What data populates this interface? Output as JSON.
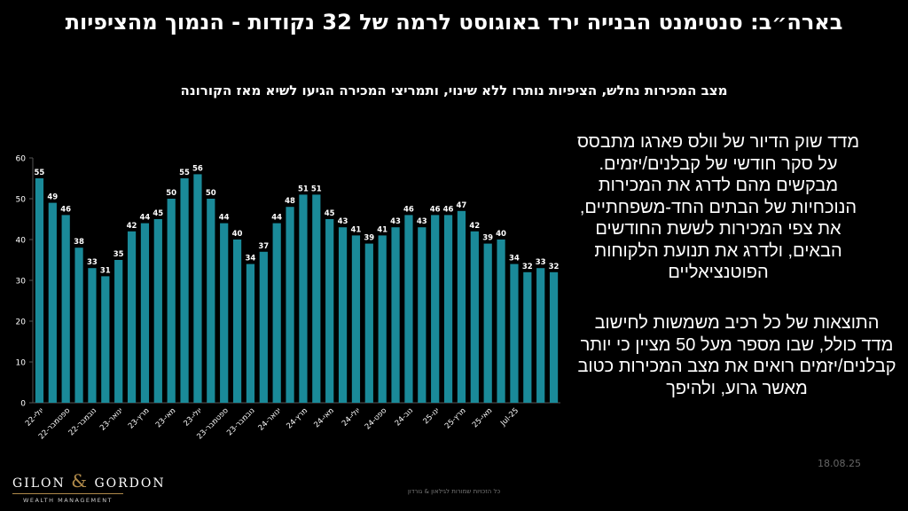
{
  "title": "בארה״ב: סנטימנט הבנייה ירד באוגוסט לרמה של 32 נקודות - הנמוך מהציפיות",
  "subtitle": "מצב המכירות נחלש, הציפיות נותרו ללא שינוי, ותמריצי המכירה הגיעו לשיא מאז הקורונה",
  "description_paragraph_1": "מדד שוק הדיור של וולס פארגו מתבסס על סקר חודשי של קבלנים/יזמים. מבקשים מהם לדרג את המכירות הנוכחיות של הבתים החד-משפחתיים, את צפי המכירות לששת החודשים הבאים, ולדרג את תנועת הלקוחות הפוטנציאליים",
  "description_paragraph_2": "התוצאות של כל רכיב משמשות לחישוב מדד כולל, שבו מספר מעל 50 מציין כי יותר קבלנים/יזמים רואים את מצב המכירות כטוב מאשר גרוע, ולהיפך",
  "date": "18.08.25",
  "logo": {
    "brand_left": "GILON",
    "ampersand": "&",
    "brand_right": "GORDON",
    "sub": "WEALTH MANAGEMENT"
  },
  "footer": "כל הזכויות שמורות לגילאון & גורדון",
  "colors": {
    "bar": "#1a8a99",
    "background": "#000000",
    "text": "#ffffff",
    "axis": "#555555"
  },
  "chart_data": {
    "type": "bar",
    "x_tick_labels": [
      "יולי-22",
      "ספטמבר-22",
      "נובמבר-22",
      "ינואר-23",
      "מרץ-23",
      "מאי-23",
      "יולי-23",
      "ספטמבר-23",
      "נובמבר-23",
      "ינואר-24",
      "מרץ-24",
      "מאי-24",
      "יולי-24",
      "ספט-24",
      "נוב-24",
      "ינו-25",
      "מרץ-25",
      "מאי-25",
      "Jul-25"
    ],
    "values": [
      55,
      49,
      46,
      38,
      33,
      31,
      35,
      42,
      44,
      45,
      50,
      55,
      56,
      50,
      44,
      40,
      34,
      37,
      44,
      48,
      51,
      51,
      45,
      43,
      41,
      39,
      41,
      43,
      46,
      43,
      46,
      46,
      47,
      42,
      39,
      40,
      34,
      32,
      33,
      32
    ],
    "ylim": [
      0,
      60
    ],
    "yticks": [
      0,
      10,
      20,
      30,
      40,
      50,
      60
    ],
    "data_labels": true,
    "grid": false
  }
}
